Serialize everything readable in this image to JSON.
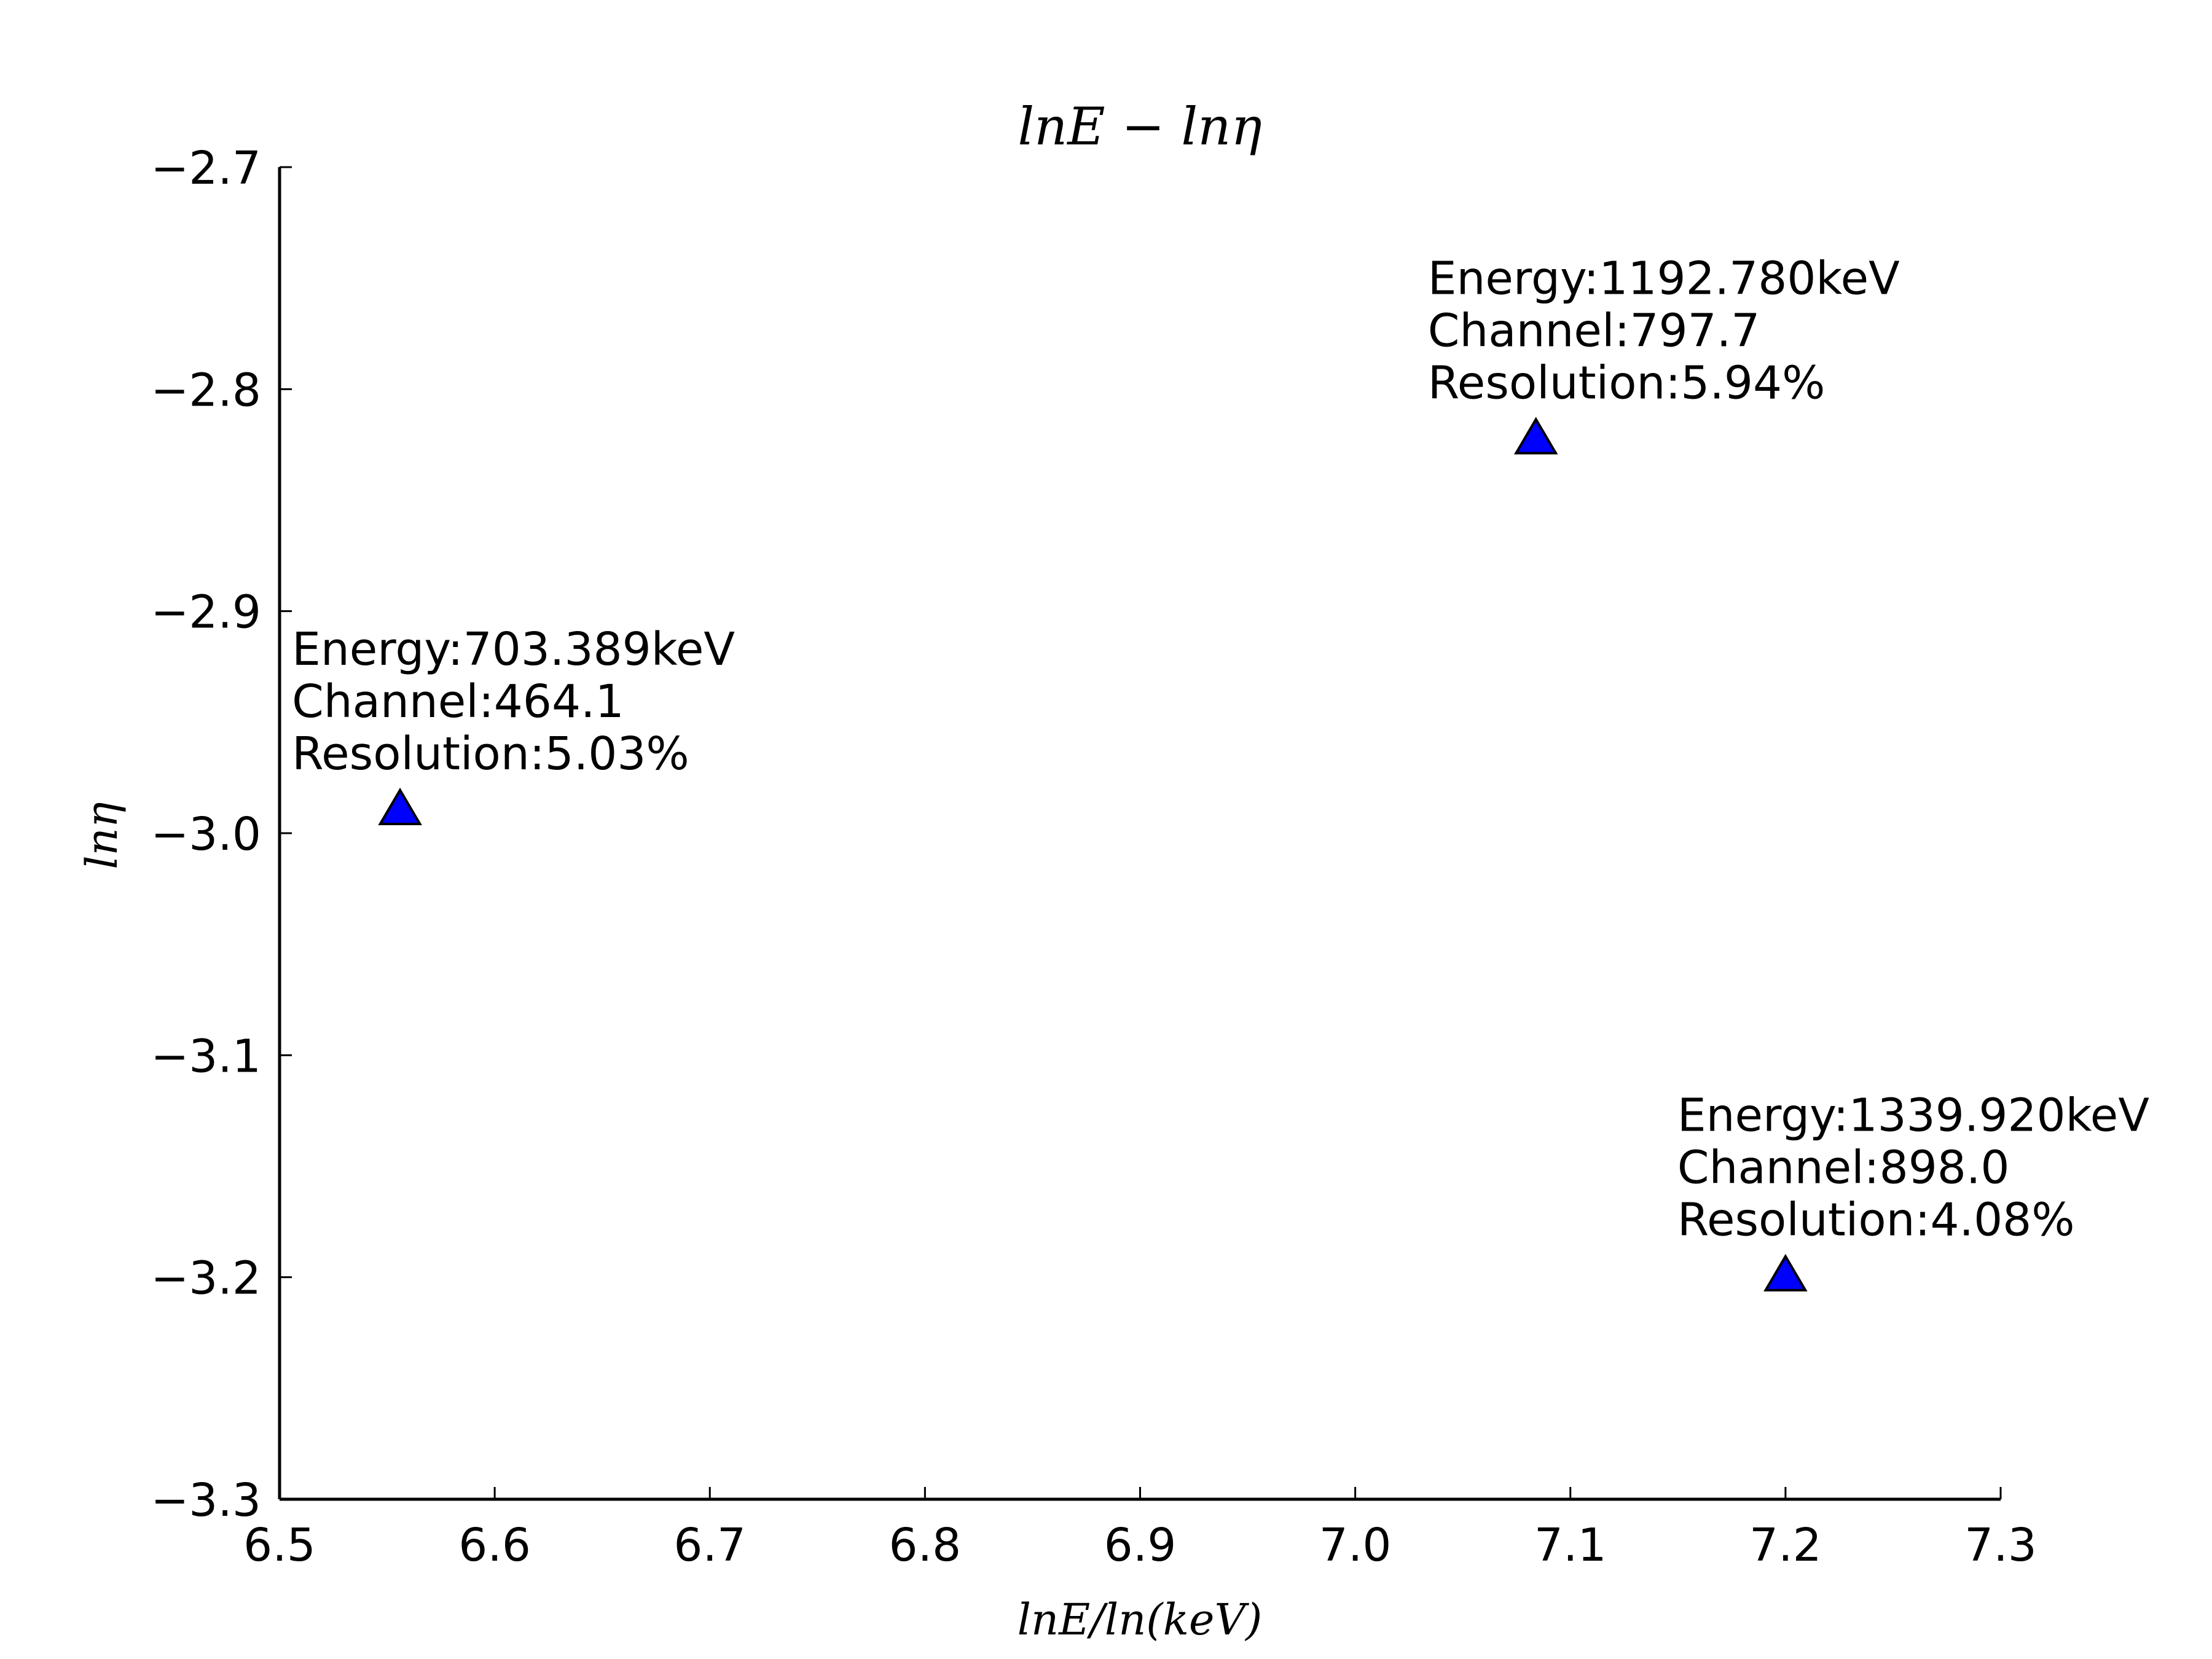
{
  "chart_data": {
    "type": "scatter",
    "title": "lnE − lnη",
    "xlabel": "lnE/ln(keV)",
    "ylabel": "lnη",
    "xlim": [
      6.5,
      7.3
    ],
    "ylim": [
      -3.3,
      -2.7
    ],
    "x_ticks": [
      "6.5",
      "6.6",
      "6.7",
      "6.8",
      "6.9",
      "7.0",
      "7.1",
      "7.2",
      "7.3"
    ],
    "y_ticks": [
      "−2.7",
      "−2.8",
      "−2.9",
      "−3.0",
      "−3.1",
      "−3.2",
      "−3.3"
    ],
    "grid": false,
    "marker": "triangle-up",
    "marker_color": "#0000ff",
    "points": [
      {
        "x": 6.556,
        "y": -2.99,
        "label_lines": [
          "Energy:703.389keV",
          "Channel:464.1",
          "Resolution:5.03%"
        ]
      },
      {
        "x": 7.084,
        "y": -2.823,
        "label_lines": [
          "Energy:1192.780keV",
          "Channel:797.7",
          "Resolution:5.94%"
        ]
      },
      {
        "x": 7.2,
        "y": -3.2,
        "label_lines": [
          "Energy:1339.920keV",
          "Channel:898.0",
          "Resolution:4.08%"
        ]
      }
    ]
  }
}
